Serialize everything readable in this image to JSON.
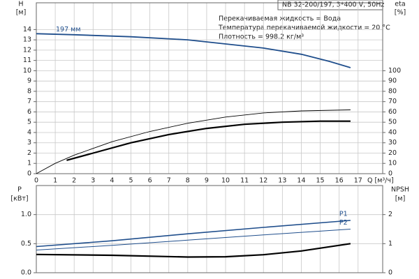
{
  "chart_data": [
    {
      "type": "line",
      "title": "NB 32-200/197, 3*400 V, 50Hz",
      "annotations": [
        "Перекачиваемая жидкость = Вода",
        "Температура перекачиваемой жидкости = 20 °C",
        "Плотность = 998.2 кг/м³"
      ],
      "xlabel": "Q [м³/ч]",
      "ylabel": [
        "H",
        "[м]"
      ],
      "y2label": [
        "eta",
        "[%]"
      ],
      "xlim": [
        0,
        18.3
      ],
      "xticks": [
        0,
        1,
        2,
        3,
        4,
        5,
        6,
        7,
        8,
        9,
        10,
        11,
        12,
        13,
        14,
        15,
        16,
        17
      ],
      "ylim": [
        0,
        16.6
      ],
      "yticks": [
        0,
        1,
        2,
        3,
        4,
        5,
        6,
        7,
        8,
        9,
        10,
        11,
        12,
        13,
        14
      ],
      "y2lim": [
        0,
        166
      ],
      "y2ticks": [
        0,
        10,
        20,
        30,
        40,
        50,
        60,
        70,
        80,
        90,
        100
      ],
      "grid": true,
      "series": [
        {
          "name": "197 мм",
          "color": "#1f4e8c",
          "x": [
            0,
            2,
            5,
            8,
            10,
            12,
            14,
            15.5,
            16.6
          ],
          "values": [
            13.6,
            13.5,
            13.3,
            13.0,
            12.6,
            12.2,
            11.6,
            10.9,
            10.3
          ]
        },
        {
          "color": "#000000",
          "axis": "y2",
          "x": [
            0,
            1,
            2,
            4,
            6,
            8,
            10,
            12,
            14,
            16.6
          ],
          "values": [
            0,
            10,
            18,
            31,
            41,
            49,
            55,
            59,
            61,
            62
          ]
        },
        {
          "color": "#000000",
          "axis": "y2",
          "x": [
            1.6,
            3,
            5,
            7,
            9,
            11,
            13,
            15,
            16.6
          ],
          "values": [
            13,
            20,
            30,
            38,
            44,
            48,
            50,
            51,
            51
          ]
        }
      ]
    },
    {
      "type": "line",
      "ylabel": [
        "P",
        "[кВт]"
      ],
      "y2label": [
        "NPSH",
        "[м]"
      ],
      "xlim": [
        0,
        18.3
      ],
      "ylim": [
        0,
        1.5
      ],
      "yticks": [
        {
          "value": 0,
          "label": "0.0"
        },
        0.5,
        {
          "value": 1,
          "label": "1.0"
        }
      ],
      "y2lim": [
        0,
        3
      ],
      "y2ticks": [
        0,
        1,
        2
      ],
      "grid": true,
      "series": [
        {
          "name": "P1",
          "color": "#1f4e8c",
          "x": [
            0,
            4,
            8,
            12,
            16.6
          ],
          "values": [
            0.45,
            0.55,
            0.67,
            0.78,
            0.9
          ]
        },
        {
          "name": "P2",
          "color": "#1f4e8c",
          "x": [
            0,
            4,
            8,
            12,
            16.6
          ],
          "values": [
            0.39,
            0.47,
            0.56,
            0.65,
            0.75
          ]
        },
        {
          "color": "#000000",
          "axis": "y2",
          "x": [
            0,
            4,
            8,
            10,
            12,
            14,
            16.6
          ],
          "values": [
            0.63,
            0.6,
            0.54,
            0.55,
            0.62,
            0.75,
            1.0
          ]
        }
      ]
    }
  ]
}
